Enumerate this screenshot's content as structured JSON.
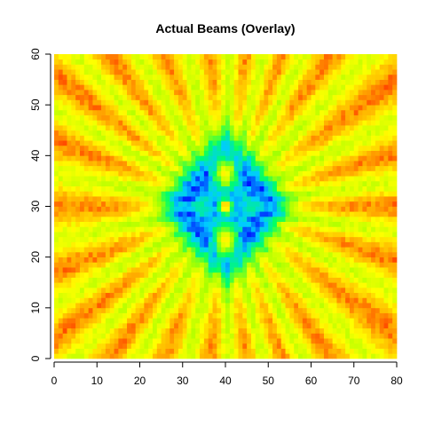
{
  "chart_data": {
    "type": "heatmap",
    "title": "Actual Beams (Overlay)",
    "xlabel": "",
    "ylabel": "",
    "xlim": [
      0,
      80
    ],
    "ylim": [
      0,
      60
    ],
    "x_ticks": [
      0,
      10,
      20,
      30,
      40,
      50,
      60,
      70,
      80
    ],
    "y_ticks": [
      0,
      10,
      20,
      30,
      40,
      50,
      60
    ],
    "grid": false,
    "legend": "none",
    "colormap": [
      "#0000ff",
      "#00ccff",
      "#00ff66",
      "#aaff00",
      "#ffff00",
      "#ffaa00",
      "#ff0000"
    ],
    "grid_size": {
      "nx": 80,
      "ny": 60
    },
    "center": {
      "x": 40,
      "y": 30
    },
    "features": {
      "central_spot": {
        "x": 40,
        "y": 30,
        "value": "high",
        "color_note": "red core with blue surround"
      },
      "upper_lobe": {
        "x": 40,
        "y": 37,
        "value": "high"
      },
      "lower_lobe": {
        "x": 40,
        "y": 23,
        "value": "high"
      },
      "low_ring": {
        "x": 40,
        "y": 30,
        "shape": "diamond",
        "value": "low"
      },
      "outer_field": {
        "pattern": "radial rays",
        "value": "high"
      }
    }
  }
}
